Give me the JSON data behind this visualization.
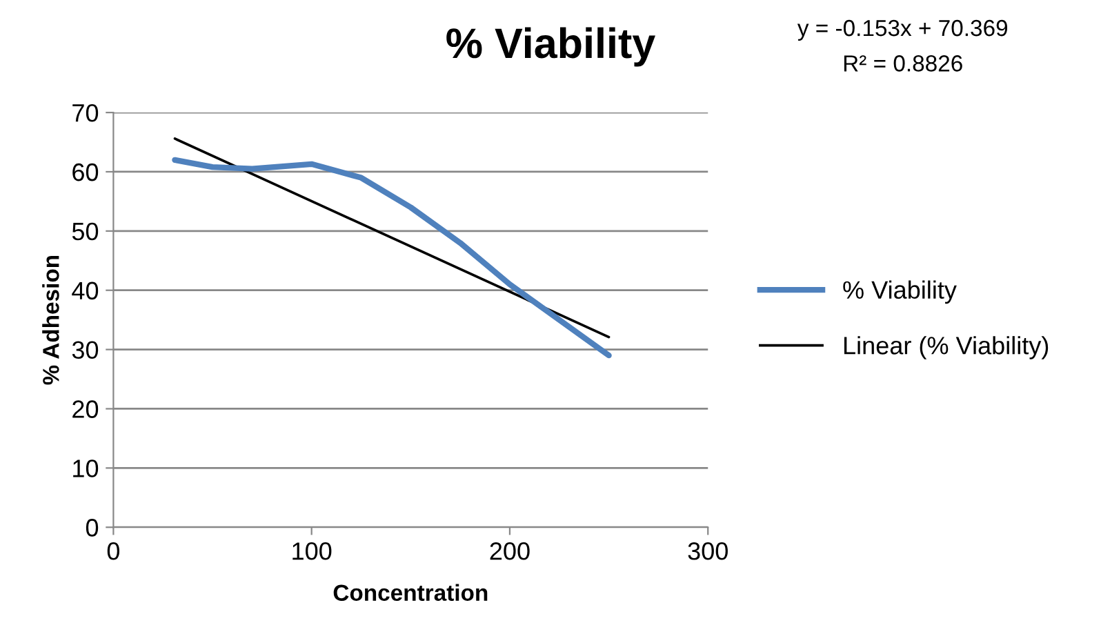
{
  "chart_data": {
    "type": "line",
    "title": "% Viability",
    "xlabel": "Concentration",
    "ylabel": "% Adhesion",
    "annotations": [
      "y = -0.153x + 70.369",
      "R² = 0.8826"
    ],
    "xlim": [
      0,
      300
    ],
    "xticks": [
      0,
      100,
      200,
      300
    ],
    "ylim": [
      0,
      70
    ],
    "yticks": [
      0,
      10,
      20,
      30,
      40,
      50,
      60,
      70
    ],
    "grid": "y",
    "legend": "right",
    "marker": "none",
    "line_style": "solid",
    "series": [
      {
        "name": "% Viability",
        "color": "#4f81bd",
        "x": [
          31,
          50,
          70,
          100,
          125,
          150,
          175,
          200,
          225,
          250
        ],
        "values": [
          62,
          60.8,
          60.5,
          61.3,
          59,
          54,
          48,
          41,
          35,
          29
        ]
      },
      {
        "name": "Linear (% Viability)",
        "color": "#000000",
        "x": [
          31,
          250
        ],
        "values": [
          65.6,
          32.1
        ]
      }
    ]
  }
}
